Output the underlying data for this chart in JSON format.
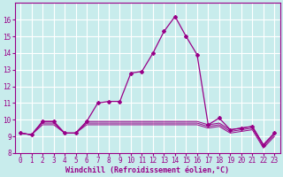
{
  "xlabel": "Windchill (Refroidissement éolien,°C)",
  "background_color": "#c8ecec",
  "grid_color": "#ffffff",
  "line_color": "#990088",
  "spine_color": "#990088",
  "tick_color": "#990088",
  "xlim": [
    -0.5,
    23.5
  ],
  "ylim": [
    8,
    17
  ],
  "yticks": [
    8,
    9,
    10,
    11,
    12,
    13,
    14,
    15,
    16
  ],
  "xticks": [
    0,
    1,
    2,
    3,
    4,
    5,
    6,
    7,
    8,
    9,
    10,
    11,
    12,
    13,
    14,
    15,
    16,
    17,
    18,
    19,
    20,
    21,
    22,
    23
  ],
  "series": [
    [
      9.2,
      9.1,
      9.9,
      9.9,
      9.2,
      9.2,
      9.9,
      11.0,
      11.1,
      11.1,
      12.8,
      12.9,
      14.0,
      15.3,
      16.2,
      15.0,
      13.9,
      9.7,
      10.1,
      9.4,
      9.5,
      9.6,
      8.5,
      9.2
    ],
    [
      9.2,
      9.1,
      9.9,
      9.9,
      9.2,
      9.2,
      9.9,
      9.9,
      9.9,
      9.9,
      9.9,
      9.9,
      9.9,
      9.9,
      9.9,
      9.9,
      9.9,
      9.7,
      9.8,
      9.4,
      9.5,
      9.6,
      8.5,
      9.2
    ],
    [
      9.2,
      9.1,
      9.8,
      9.8,
      9.2,
      9.2,
      9.8,
      9.8,
      9.8,
      9.8,
      9.8,
      9.8,
      9.8,
      9.8,
      9.8,
      9.8,
      9.8,
      9.6,
      9.7,
      9.3,
      9.4,
      9.5,
      8.4,
      9.1
    ],
    [
      9.2,
      9.1,
      9.7,
      9.7,
      9.2,
      9.2,
      9.7,
      9.7,
      9.7,
      9.7,
      9.7,
      9.7,
      9.7,
      9.7,
      9.7,
      9.7,
      9.7,
      9.5,
      9.6,
      9.2,
      9.3,
      9.4,
      8.3,
      9.0
    ]
  ],
  "xlabel_fontsize": 6,
  "tick_fontsize": 5.5
}
